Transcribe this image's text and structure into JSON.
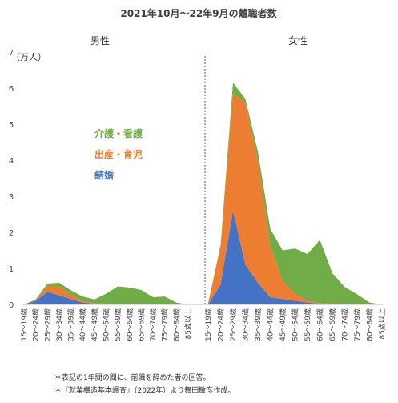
{
  "chart_data": {
    "type": "area",
    "title": "2021年10月～22年9月の離職者数",
    "unit_label": "（万人）",
    "ylim": [
      0,
      7
    ],
    "yticks": [
      0,
      1,
      2,
      3,
      4,
      5,
      6,
      7
    ],
    "grid": false,
    "categories": [
      "15～19歳",
      "20～24歳",
      "25～29歳",
      "30～34歳",
      "35～39歳",
      "40～44歳",
      "45～49歳",
      "50～54歳",
      "55～59歳",
      "60～64歳",
      "65～69歳",
      "70～74歳",
      "75～79歳",
      "80～84歳",
      "85歳以上"
    ],
    "panels": [
      {
        "name": "男性",
        "series": [
          {
            "name": "結婚",
            "color": "#4472c4",
            "values": [
              0,
              0.1,
              0.35,
              0.25,
              0.15,
              0.05,
              0.02,
              0.01,
              0,
              0,
              0,
              0,
              0,
              0,
              0
            ]
          },
          {
            "name": "出産・育児",
            "color": "#ed7d31",
            "values": [
              0,
              0.02,
              0.15,
              0.25,
              0.12,
              0.05,
              0.02,
              0.01,
              0,
              0,
              0,
              0,
              0,
              0,
              0
            ]
          },
          {
            "name": "介護・看護",
            "color": "#70ad47",
            "values": [
              0,
              0.02,
              0.08,
              0.1,
              0.12,
              0.12,
              0.1,
              0.28,
              0.5,
              0.47,
              0.4,
              0.2,
              0.22,
              0.05,
              0
            ]
          }
        ]
      },
      {
        "name": "女性",
        "series": [
          {
            "name": "結婚",
            "color": "#4472c4",
            "values": [
              0,
              0.55,
              2.6,
              1.1,
              0.6,
              0.2,
              0.15,
              0.1,
              0.05,
              0.02,
              0.01,
              0,
              0,
              0,
              0
            ]
          },
          {
            "name": "出産・育児",
            "color": "#ed7d31",
            "values": [
              0.02,
              1.05,
              3.25,
              4.5,
              3.4,
              1.45,
              0.5,
              0.2,
              0.05,
              0.02,
              0.01,
              0,
              0,
              0,
              0
            ]
          },
          {
            "name": "介護・看護",
            "color": "#70ad47",
            "values": [
              0.02,
              0.05,
              0.3,
              0.1,
              0.25,
              0.45,
              0.85,
              1.25,
              1.3,
              1.75,
              0.85,
              0.48,
              0.28,
              0.05,
              0
            ]
          }
        ]
      }
    ],
    "legend": [
      {
        "name": "介護・看護",
        "color": "#70ad47"
      },
      {
        "name": "出産・育児",
        "color": "#ed7d31"
      },
      {
        "name": "結婚",
        "color": "#4472c4"
      }
    ],
    "notes": [
      "＊表記の1年間の間に、前職を辞めた者の回答。",
      "＊『就業構造基本調査』（2022年）より舞田敏彦作成。"
    ]
  }
}
